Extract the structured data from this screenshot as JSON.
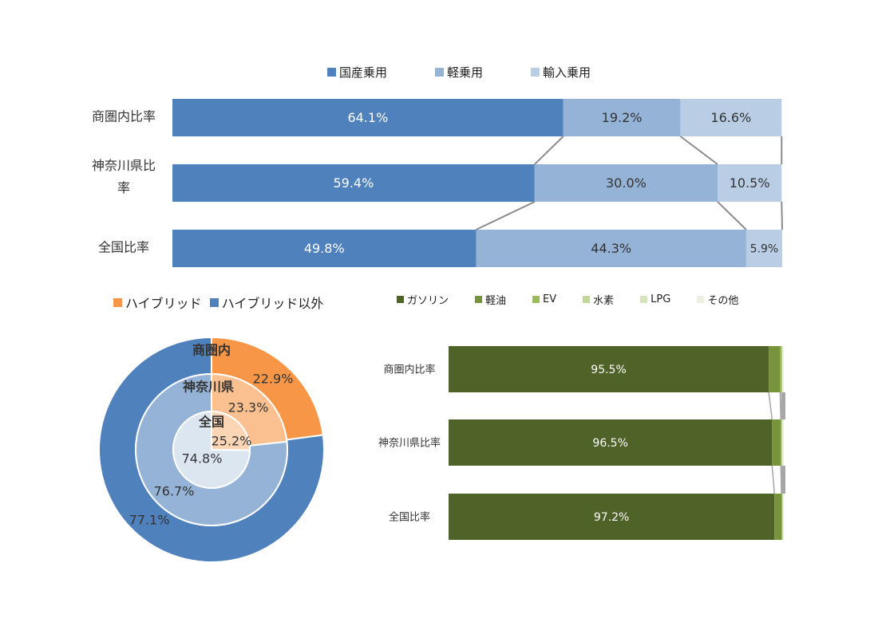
{
  "chart_data": [
    {
      "type": "bar",
      "orientation": "horizontal-stacked-100",
      "categories": [
        "商圏内比率",
        "神奈川県比率",
        "全国比率"
      ],
      "series": [
        {
          "name": "国産乗用",
          "values": [
            64.1,
            59.4,
            49.8
          ],
          "labels": [
            "64.1%",
            "59.4%",
            "49.8%"
          ],
          "color": "#4F81BD",
          "label_color": "#ffffff"
        },
        {
          "name": "軽乗用",
          "values": [
            19.2,
            30.0,
            44.3
          ],
          "labels": [
            "19.2%",
            "30.0%",
            "44.3%"
          ],
          "color": "#95B3D7",
          "label_color": "#333333"
        },
        {
          "name": "輸入乗用",
          "values": [
            16.6,
            10.5,
            5.9
          ],
          "labels": [
            "16.6%",
            "10.5%",
            "5.9%"
          ],
          "color": "#B9CDE5",
          "label_color": "#333333"
        }
      ],
      "legend": "top",
      "series_lines": true
    },
    {
      "type": "pie",
      "subtype": "nested-donut",
      "series": [
        "ハイブリッド",
        "ハイブリッド以外"
      ],
      "colors": [
        "#F79646",
        "#4F81BD"
      ],
      "rings": [
        {
          "name": "商圏内",
          "values": [
            22.9,
            77.1
          ],
          "labels": [
            "22.9%",
            "77.1%"
          ],
          "colors": [
            "#F79646",
            "#4F81BD"
          ]
        },
        {
          "name": "神奈川県",
          "values": [
            23.3,
            76.7
          ],
          "labels": [
            "23.3%",
            "76.7%"
          ],
          "colors": [
            "#FAC090",
            "#95B3D7"
          ]
        },
        {
          "name": "全国",
          "values": [
            25.2,
            74.8
          ],
          "labels": [
            "25.2%",
            "74.8%"
          ],
          "colors": [
            "#FCD5B4",
            "#DCE6F1"
          ]
        }
      ],
      "legend": "top-left"
    },
    {
      "type": "bar",
      "orientation": "horizontal-stacked-100",
      "categories": [
        "商圏内比率",
        "神奈川県比率",
        "全国比率"
      ],
      "series": [
        {
          "name": "ガソリン",
          "values": [
            95.5,
            96.5,
            97.2
          ],
          "labels": [
            "95.5%",
            "96.5%",
            "97.2%"
          ],
          "color": "#4F6228"
        },
        {
          "name": "軽油",
          "values": [
            3.4,
            2.6,
            2.1
          ],
          "color": "#77933C"
        },
        {
          "name": "EV",
          "values": [
            0.5,
            0.3,
            0.3
          ],
          "color": "#9BBB59"
        },
        {
          "name": "水素",
          "values": [
            0.0,
            0.0,
            0.0
          ],
          "color": "#C3D69B"
        },
        {
          "name": "LPG",
          "values": [
            0.2,
            0.2,
            0.2
          ],
          "color": "#D7E4BD"
        },
        {
          "name": "その他",
          "values": [
            0.4,
            0.4,
            0.2
          ],
          "color": "#EBF1DE"
        }
      ],
      "legend": "top",
      "series_lines": true
    }
  ]
}
